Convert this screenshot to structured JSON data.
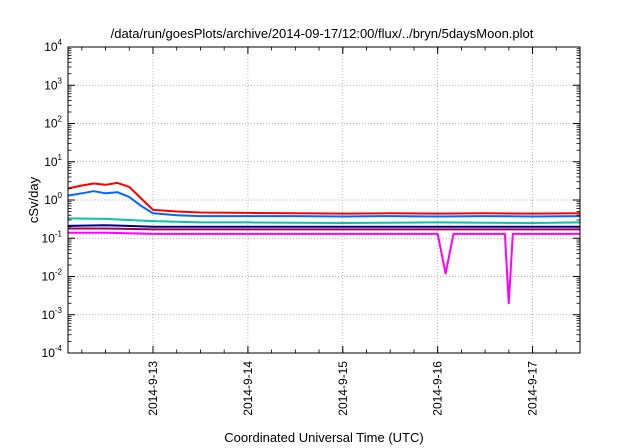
{
  "chart_data": {
    "type": "line",
    "title": "/data/run/goesPlots/archive/2014-09-17/12:00/flux/../bryn/5daysMoon.plot",
    "xlabel": "Coordinated Universal Time (UTC)",
    "ylabel": "cSv/day",
    "y_scale": "log",
    "ylim_exp": [
      -4,
      4
    ],
    "y_tick_base": "10",
    "y_tick_exponents": [
      "-4",
      "-3",
      "-2",
      "-1",
      "0",
      "1",
      "2",
      "3",
      "4"
    ],
    "xlim": [
      "2014-09-12 02:30",
      "2014-09-17 12:00"
    ],
    "x_tick_labels": [
      "2014-9-13",
      "2014-9-14",
      "2014-9-15",
      "2014-9-16",
      "2014-9-17"
    ],
    "x_ticks": [
      "2014-09-13 00:00",
      "2014-09-14 00:00",
      "2014-09-15 00:00",
      "2014-09-16 00:00",
      "2014-09-17 00:00"
    ],
    "grid": true,
    "legend": "none",
    "series": [
      {
        "color": "#ff0000",
        "points": [
          [
            "2014-09-12 02:30",
            2.0
          ],
          [
            "2014-09-12 06:00",
            2.4
          ],
          [
            "2014-09-12 09:00",
            2.7
          ],
          [
            "2014-09-12 12:00",
            2.5
          ],
          [
            "2014-09-12 15:00",
            2.8
          ],
          [
            "2014-09-12 18:00",
            2.2
          ],
          [
            "2014-09-12 21:00",
            1.1
          ],
          [
            "2014-09-13 00:00",
            0.55
          ],
          [
            "2014-09-13 06:00",
            0.5
          ],
          [
            "2014-09-13 12:00",
            0.47
          ],
          [
            "2014-09-14 00:00",
            0.46
          ],
          [
            "2014-09-14 12:00",
            0.45
          ],
          [
            "2014-09-15 00:00",
            0.44
          ],
          [
            "2014-09-15 12:00",
            0.45
          ],
          [
            "2014-09-16 00:00",
            0.44
          ],
          [
            "2014-09-16 12:00",
            0.45
          ],
          [
            "2014-09-17 00:00",
            0.44
          ],
          [
            "2014-09-17 12:00",
            0.45
          ]
        ]
      },
      {
        "color": "#0066ff",
        "points": [
          [
            "2014-09-12 02:30",
            1.3
          ],
          [
            "2014-09-12 06:00",
            1.5
          ],
          [
            "2014-09-12 09:00",
            1.7
          ],
          [
            "2014-09-12 12:00",
            1.5
          ],
          [
            "2014-09-12 15:00",
            1.6
          ],
          [
            "2014-09-12 18:00",
            1.2
          ],
          [
            "2014-09-12 21:00",
            0.7
          ],
          [
            "2014-09-13 00:00",
            0.45
          ],
          [
            "2014-09-13 06:00",
            0.4
          ],
          [
            "2014-09-13 12:00",
            0.38
          ],
          [
            "2014-09-14 00:00",
            0.38
          ],
          [
            "2014-09-14 12:00",
            0.38
          ],
          [
            "2014-09-15 00:00",
            0.37
          ],
          [
            "2014-09-15 12:00",
            0.38
          ],
          [
            "2014-09-16 00:00",
            0.37
          ],
          [
            "2014-09-16 12:00",
            0.38
          ],
          [
            "2014-09-17 00:00",
            0.37
          ],
          [
            "2014-09-17 12:00",
            0.38
          ]
        ]
      },
      {
        "color": "#00c8a0",
        "points": [
          [
            "2014-09-12 02:30",
            0.33
          ],
          [
            "2014-09-12 12:00",
            0.32
          ],
          [
            "2014-09-13 00:00",
            0.28
          ],
          [
            "2014-09-13 12:00",
            0.26
          ],
          [
            "2014-09-14 00:00",
            0.26
          ],
          [
            "2014-09-15 00:00",
            0.25
          ],
          [
            "2014-09-16 00:00",
            0.26
          ],
          [
            "2014-09-17 00:00",
            0.25
          ],
          [
            "2014-09-17 12:00",
            0.26
          ]
        ]
      },
      {
        "color": "#000080",
        "points": [
          [
            "2014-09-12 02:30",
            0.21
          ],
          [
            "2014-09-12 12:00",
            0.22
          ],
          [
            "2014-09-13 00:00",
            0.2
          ],
          [
            "2014-09-14 00:00",
            0.2
          ],
          [
            "2014-09-15 00:00",
            0.2
          ],
          [
            "2014-09-16 00:00",
            0.2
          ],
          [
            "2014-09-17 00:00",
            0.2
          ],
          [
            "2014-09-17 12:00",
            0.2
          ]
        ]
      },
      {
        "color": "#a00050",
        "points": [
          [
            "2014-09-12 02:30",
            0.18
          ],
          [
            "2014-09-12 12:00",
            0.18
          ],
          [
            "2014-09-13 00:00",
            0.17
          ],
          [
            "2014-09-14 00:00",
            0.17
          ],
          [
            "2014-09-15 00:00",
            0.17
          ],
          [
            "2014-09-16 00:00",
            0.17
          ],
          [
            "2014-09-17 00:00",
            0.17
          ],
          [
            "2014-09-17 12:00",
            0.17
          ]
        ]
      },
      {
        "color": "#ff00ff",
        "points": [
          [
            "2014-09-12 02:30",
            0.14
          ],
          [
            "2014-09-12 12:00",
            0.14
          ],
          [
            "2014-09-13 00:00",
            0.13
          ],
          [
            "2014-09-14 00:00",
            0.13
          ],
          [
            "2014-09-15 00:00",
            0.13
          ],
          [
            "2014-09-16 00:00",
            0.13
          ],
          [
            "2014-09-16 02:00",
            0.012
          ],
          [
            "2014-09-16 04:00",
            0.13
          ],
          [
            "2014-09-16 17:00",
            0.13
          ],
          [
            "2014-09-16 18:00",
            0.002
          ],
          [
            "2014-09-16 19:00",
            0.13
          ],
          [
            "2014-09-17 00:00",
            0.13
          ],
          [
            "2014-09-17 12:00",
            0.13
          ]
        ]
      }
    ]
  }
}
